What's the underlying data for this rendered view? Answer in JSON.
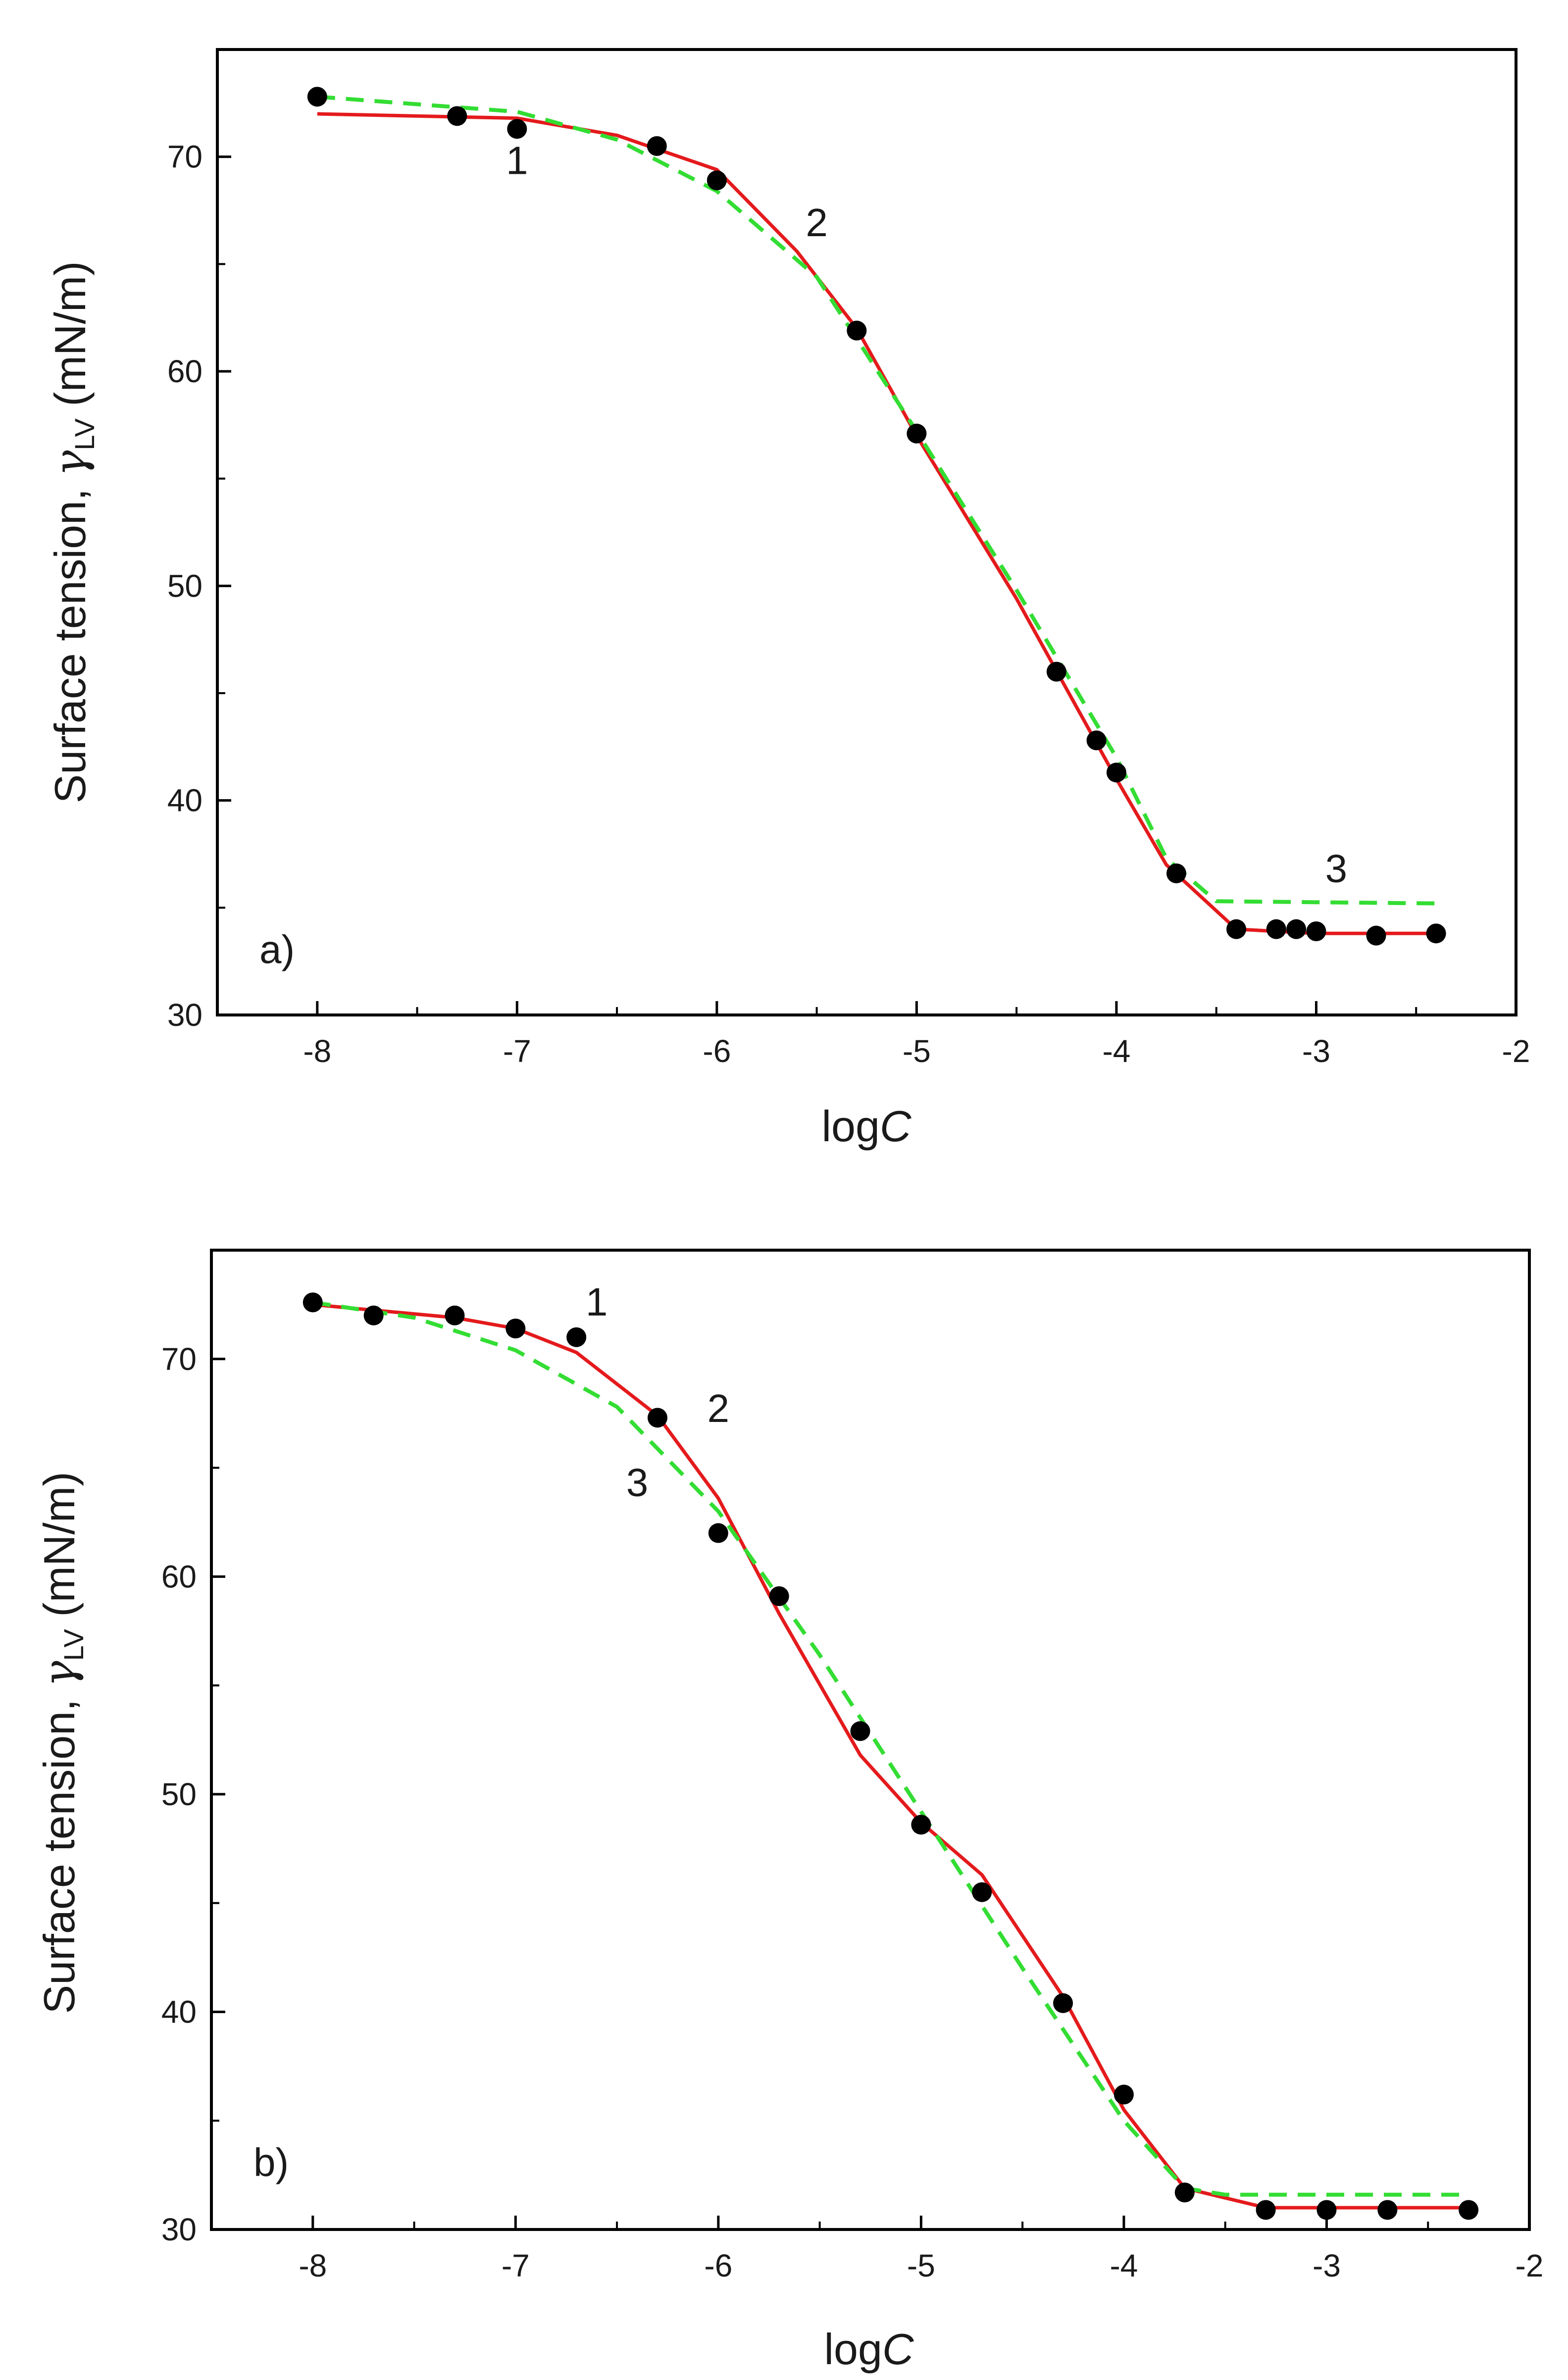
{
  "chart_data": [
    {
      "type": "scatter",
      "panel_label": "a)",
      "xlabel_prefix": "log",
      "xlabel_var": "C",
      "ylabel_prefix": "Surface tension, ",
      "ylabel_symbol": "γ",
      "ylabel_sub": "LV",
      "ylabel_suffix": " (mN/m)",
      "xlim": [
        -8.5,
        -2
      ],
      "ylim": [
        30,
        75
      ],
      "xticks": [
        -8,
        -7,
        -6,
        -5,
        -4,
        -3,
        -2
      ],
      "xtick_labels": [
        "-8",
        "-7",
        "-6",
        "-5",
        "-4",
        "-3",
        "-2"
      ],
      "yticks": [
        30,
        40,
        50,
        60,
        70
      ],
      "ytick_labels": [
        "30",
        "40",
        "50",
        "60",
        "70"
      ],
      "series": [
        {
          "name": "measured",
          "style": "points",
          "color": "#000000",
          "points": [
            [
              -8.0,
              72.8
            ],
            [
              -7.3,
              71.9
            ],
            [
              -7.0,
              71.3
            ],
            [
              -6.3,
              70.5
            ],
            [
              -6.0,
              68.9
            ],
            [
              -5.3,
              61.9
            ],
            [
              -5.0,
              57.1
            ],
            [
              -4.3,
              46.0
            ],
            [
              -4.1,
              42.8
            ],
            [
              -4.0,
              41.3
            ],
            [
              -3.7,
              36.6
            ],
            [
              -3.4,
              34.0
            ],
            [
              -3.2,
              34.0
            ],
            [
              -3.1,
              34.0
            ],
            [
              -3.0,
              33.9
            ],
            [
              -2.7,
              33.7
            ],
            [
              -2.4,
              33.8
            ]
          ]
        },
        {
          "name": "curve 2 (red solid)",
          "style": "solid",
          "color": "#e41a1c",
          "points": [
            [
              -8.0,
              72.0
            ],
            [
              -7.0,
              71.8
            ],
            [
              -6.5,
              71.0
            ],
            [
              -6.0,
              69.4
            ],
            [
              -5.6,
              65.6
            ],
            [
              -5.3,
              62.0
            ],
            [
              -5.0,
              57.0
            ],
            [
              -4.5,
              49.4
            ],
            [
              -4.0,
              41.0
            ],
            [
              -3.75,
              37.0
            ],
            [
              -3.4,
              34.0
            ],
            [
              -3.0,
              33.8
            ],
            [
              -2.4,
              33.8
            ]
          ]
        },
        {
          "name": "curve 3 (green dashed)",
          "style": "dashed",
          "color": "#33dd33",
          "points": [
            [
              -8.0,
              72.8
            ],
            [
              -7.0,
              72.1
            ],
            [
              -6.5,
              70.8
            ],
            [
              -6.0,
              68.4
            ],
            [
              -5.5,
              64.4
            ],
            [
              -5.0,
              57.2
            ],
            [
              -4.5,
              49.8
            ],
            [
              -4.0,
              42.0
            ],
            [
              -3.75,
              37.3
            ],
            [
              -3.5,
              35.3
            ],
            [
              -2.4,
              35.2
            ]
          ]
        }
      ],
      "annotations": [
        {
          "text": "1",
          "x": -7.0,
          "y": 69.2
        },
        {
          "text": "2",
          "x": -5.5,
          "y": 66.3
        },
        {
          "text": "3",
          "x": -2.9,
          "y": 36.2
        }
      ]
    },
    {
      "type": "scatter",
      "panel_label": "b)",
      "xlabel_prefix": "log",
      "xlabel_var": "C",
      "ylabel_prefix": "Surface tension, ",
      "ylabel_symbol": "γ",
      "ylabel_sub": "LV",
      "ylabel_suffix": " (mN/m)",
      "xlim": [
        -8.5,
        -2
      ],
      "ylim": [
        30,
        75
      ],
      "xticks": [
        -8,
        -7,
        -6,
        -5,
        -4,
        -3,
        -2
      ],
      "xtick_labels": [
        "-8",
        "-7",
        "-6",
        "-5",
        "-4",
        "-3",
        "-2"
      ],
      "yticks": [
        30,
        40,
        50,
        60,
        70
      ],
      "ytick_labels": [
        "30",
        "40",
        "50",
        "60",
        "70"
      ],
      "series": [
        {
          "name": "measured",
          "style": "points",
          "color": "#000000",
          "points": [
            [
              -8.0,
              72.6
            ],
            [
              -7.7,
              72.0
            ],
            [
              -7.3,
              72.0
            ],
            [
              -7.0,
              71.4
            ],
            [
              -6.7,
              71.0
            ],
            [
              -6.3,
              67.3
            ],
            [
              -6.0,
              62.0
            ],
            [
              -5.7,
              59.1
            ],
            [
              -5.3,
              52.9
            ],
            [
              -5.0,
              48.6
            ],
            [
              -4.7,
              45.5
            ],
            [
              -4.3,
              40.4
            ],
            [
              -4.0,
              36.2
            ],
            [
              -3.7,
              31.7
            ],
            [
              -3.3,
              30.9
            ],
            [
              -3.0,
              30.9
            ],
            [
              -2.7,
              30.9
            ],
            [
              -2.3,
              30.9
            ]
          ]
        },
        {
          "name": "curve 2 (red solid)",
          "style": "solid",
          "color": "#e41a1c",
          "points": [
            [
              -8.0,
              72.5
            ],
            [
              -7.3,
              71.9
            ],
            [
              -7.0,
              71.4
            ],
            [
              -6.7,
              70.3
            ],
            [
              -6.3,
              67.4
            ],
            [
              -6.0,
              63.6
            ],
            [
              -5.7,
              58.3
            ],
            [
              -5.3,
              51.8
            ],
            [
              -5.0,
              48.7
            ],
            [
              -4.7,
              46.3
            ],
            [
              -4.3,
              40.7
            ],
            [
              -4.0,
              35.5
            ],
            [
              -3.7,
              31.9
            ],
            [
              -3.3,
              31.0
            ],
            [
              -2.3,
              31.0
            ]
          ]
        },
        {
          "name": "curve 3 (green dashed)",
          "style": "dashed",
          "color": "#33dd33",
          "points": [
            [
              -8.0,
              72.6
            ],
            [
              -7.5,
              71.9
            ],
            [
              -7.0,
              70.4
            ],
            [
              -6.5,
              67.8
            ],
            [
              -6.0,
              63.0
            ],
            [
              -5.5,
              56.4
            ],
            [
              -5.0,
              49.2
            ],
            [
              -4.5,
              42.0
            ],
            [
              -4.0,
              35.0
            ],
            [
              -3.7,
              31.9
            ],
            [
              -3.5,
              31.6
            ],
            [
              -2.3,
              31.6
            ]
          ]
        }
      ],
      "annotations": [
        {
          "text": "1",
          "x": -6.6,
          "y": 72.0
        },
        {
          "text": "2",
          "x": -6.0,
          "y": 67.1
        },
        {
          "text": "3",
          "x": -6.4,
          "y": 63.7
        }
      ]
    }
  ]
}
